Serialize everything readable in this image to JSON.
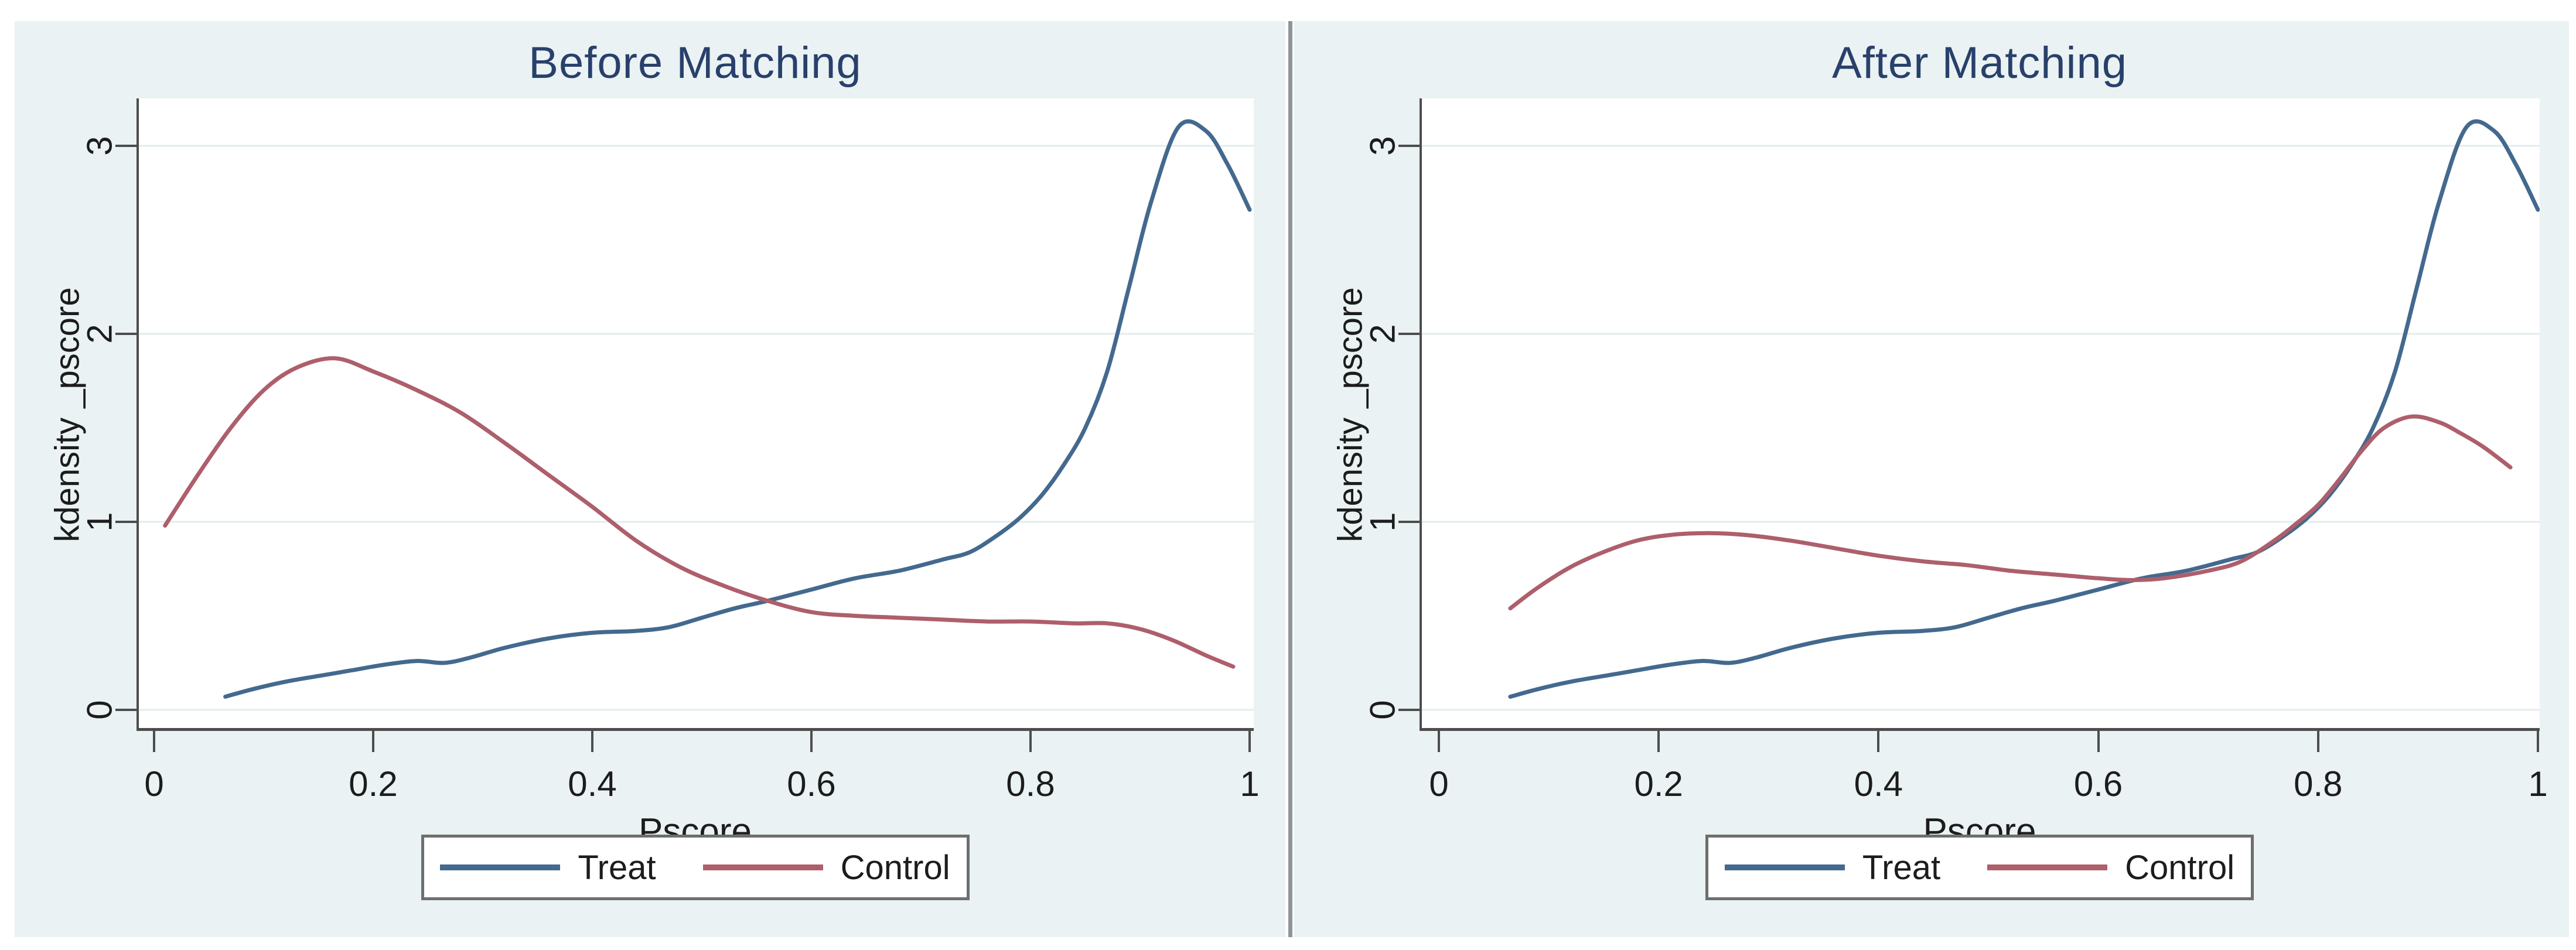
{
  "colors": {
    "treat_line": "#44698e",
    "control_line": "#ad5f6b",
    "panel_background": "#eaf2f3",
    "plot_background": "#ffffff",
    "gridline": "#e3edee",
    "axis_line": "#4d4d4d",
    "title_text": "#28406b",
    "tick_text": "#1c1c1c",
    "legend_border": "#6e6e6e",
    "panel_divider": "#8f9496"
  },
  "chart_data": [
    {
      "type": "line",
      "title": "Before Matching",
      "xlabel": "Pscore",
      "ylabel": "kdensity _pscore",
      "xlim": [
        0,
        1
      ],
      "ylim": [
        0,
        3.25
      ],
      "xticks": [
        0,
        0.2,
        0.4,
        0.6,
        0.8,
        1
      ],
      "xtick_labels": [
        "0",
        "0.2",
        "0.4",
        "0.6",
        "0.8",
        "1"
      ],
      "yticks": [
        0,
        1,
        2,
        3
      ],
      "ytick_labels": [
        "0",
        "1",
        "2",
        "3"
      ],
      "grid": true,
      "legend_position": "bottom",
      "series": [
        {
          "name": "Treat",
          "color": "#44698e",
          "x": [
            0.065,
            0.09,
            0.12,
            0.15,
            0.18,
            0.21,
            0.24,
            0.265,
            0.29,
            0.32,
            0.36,
            0.4,
            0.44,
            0.47,
            0.5,
            0.53,
            0.56,
            0.6,
            0.64,
            0.68,
            0.72,
            0.745,
            0.77,
            0.79,
            0.81,
            0.83,
            0.85,
            0.87,
            0.89,
            0.91,
            0.935,
            0.96,
            0.98,
            1.0
          ],
          "y": [
            0.07,
            0.11,
            0.15,
            0.18,
            0.21,
            0.24,
            0.26,
            0.25,
            0.28,
            0.33,
            0.38,
            0.41,
            0.42,
            0.44,
            0.49,
            0.54,
            0.58,
            0.64,
            0.7,
            0.74,
            0.8,
            0.84,
            0.93,
            1.02,
            1.14,
            1.3,
            1.5,
            1.8,
            2.25,
            2.7,
            3.1,
            3.08,
            2.9,
            2.66
          ]
        },
        {
          "name": "Control",
          "color": "#ad5f6b",
          "x": [
            0.01,
            0.04,
            0.07,
            0.1,
            0.13,
            0.165,
            0.2,
            0.24,
            0.28,
            0.32,
            0.36,
            0.4,
            0.44,
            0.48,
            0.52,
            0.56,
            0.6,
            0.64,
            0.68,
            0.72,
            0.76,
            0.8,
            0.84,
            0.87,
            0.9,
            0.93,
            0.96,
            0.985
          ],
          "y": [
            0.98,
            1.25,
            1.5,
            1.7,
            1.82,
            1.87,
            1.8,
            1.7,
            1.58,
            1.42,
            1.25,
            1.08,
            0.9,
            0.76,
            0.66,
            0.58,
            0.52,
            0.5,
            0.49,
            0.48,
            0.47,
            0.47,
            0.46,
            0.46,
            0.43,
            0.37,
            0.29,
            0.23
          ]
        }
      ]
    },
    {
      "type": "line",
      "title": "After Matching",
      "xlabel": "Pscore",
      "ylabel": "kdensity _pscore",
      "xlim": [
        0,
        1
      ],
      "ylim": [
        0,
        3.25
      ],
      "xticks": [
        0,
        0.2,
        0.4,
        0.6,
        0.8,
        1
      ],
      "xtick_labels": [
        "0",
        "0.2",
        "0.4",
        "0.6",
        "0.8",
        "1"
      ],
      "yticks": [
        0,
        1,
        2,
        3
      ],
      "ytick_labels": [
        "0",
        "1",
        "2",
        "3"
      ],
      "grid": true,
      "legend_position": "bottom",
      "series": [
        {
          "name": "Treat",
          "color": "#44698e",
          "x": [
            0.065,
            0.09,
            0.12,
            0.15,
            0.18,
            0.21,
            0.24,
            0.265,
            0.29,
            0.32,
            0.36,
            0.4,
            0.44,
            0.47,
            0.5,
            0.53,
            0.56,
            0.6,
            0.64,
            0.68,
            0.72,
            0.745,
            0.77,
            0.79,
            0.81,
            0.83,
            0.85,
            0.87,
            0.89,
            0.91,
            0.935,
            0.96,
            0.98,
            1.0
          ],
          "y": [
            0.07,
            0.11,
            0.15,
            0.18,
            0.21,
            0.24,
            0.26,
            0.25,
            0.28,
            0.33,
            0.38,
            0.41,
            0.42,
            0.44,
            0.49,
            0.54,
            0.58,
            0.64,
            0.7,
            0.74,
            0.8,
            0.84,
            0.93,
            1.02,
            1.14,
            1.3,
            1.5,
            1.8,
            2.25,
            2.7,
            3.1,
            3.08,
            2.9,
            2.66
          ]
        },
        {
          "name": "Control",
          "color": "#ad5f6b",
          "x": [
            0.065,
            0.09,
            0.12,
            0.15,
            0.18,
            0.21,
            0.245,
            0.28,
            0.32,
            0.36,
            0.4,
            0.44,
            0.48,
            0.52,
            0.56,
            0.6,
            0.63,
            0.66,
            0.7,
            0.73,
            0.76,
            0.78,
            0.8,
            0.82,
            0.84,
            0.86,
            0.885,
            0.91,
            0.93,
            0.95,
            0.975
          ],
          "y": [
            0.54,
            0.65,
            0.76,
            0.84,
            0.9,
            0.93,
            0.94,
            0.93,
            0.9,
            0.86,
            0.82,
            0.79,
            0.77,
            0.74,
            0.72,
            0.7,
            0.69,
            0.7,
            0.74,
            0.79,
            0.9,
            0.99,
            1.09,
            1.23,
            1.38,
            1.5,
            1.56,
            1.53,
            1.47,
            1.4,
            1.29
          ]
        }
      ]
    }
  ]
}
